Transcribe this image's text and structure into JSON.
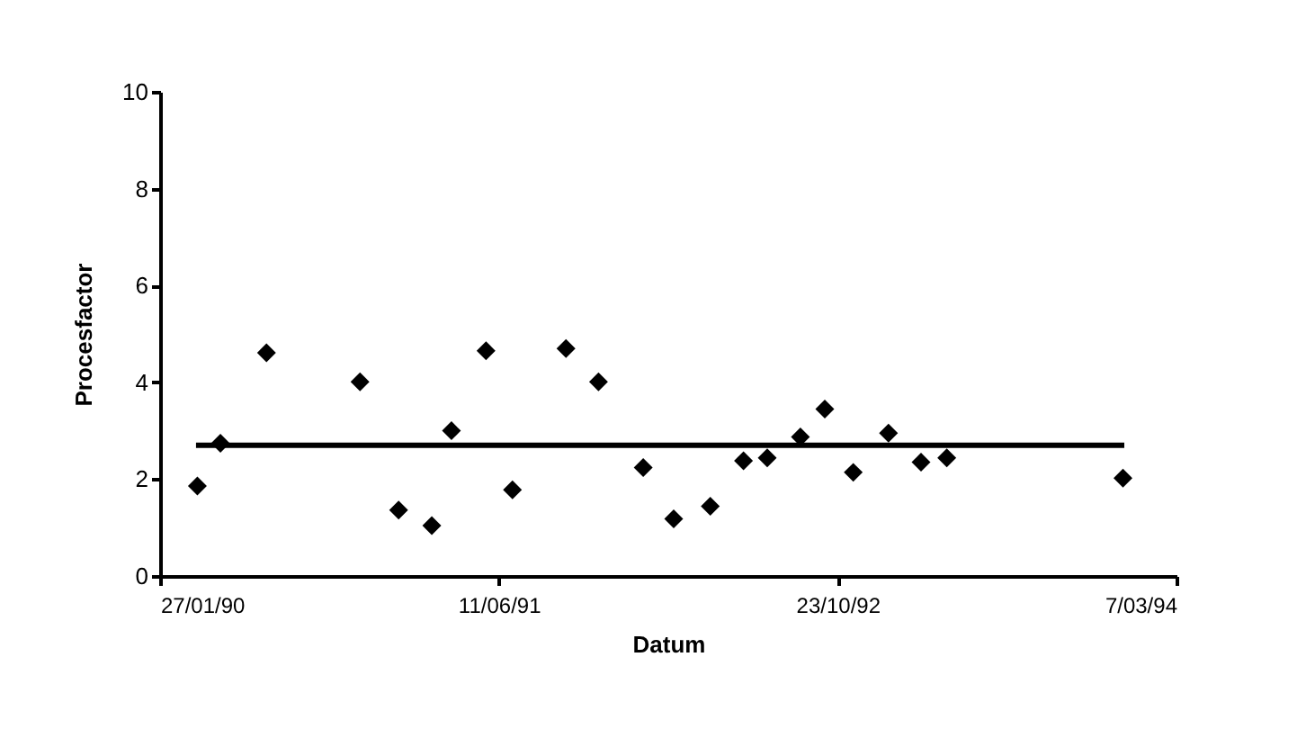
{
  "chart_data": {
    "type": "scatter",
    "xlabel": "Datum",
    "ylabel": "Procesfactor",
    "x": [
      "1990-03-23",
      "1990-04-26",
      "1990-07-03",
      "1990-11-18",
      "1991-01-14",
      "1991-03-04",
      "1991-04-02",
      "1991-05-23",
      "1991-07-01",
      "1991-09-18",
      "1991-11-05",
      "1992-01-10",
      "1992-02-24",
      "1992-04-18",
      "1992-06-06",
      "1992-07-11",
      "1992-08-29",
      "1992-10-04",
      "1992-11-15",
      "1993-01-06",
      "1993-02-23",
      "1993-04-02",
      "1993-12-18"
    ],
    "series": [
      {
        "color": "#000000",
        "values": [
          1.86,
          2.74,
          4.61,
          4.01,
          1.36,
          1.04,
          3.0,
          4.65,
          1.78,
          4.7,
          4.01,
          2.24,
          1.18,
          1.44,
          2.38,
          2.44,
          2.87,
          3.45,
          2.14,
          2.95,
          2.35,
          2.44,
          2.02
        ]
      },
      {
        "type": "line",
        "color": "#000000",
        "marker": "none",
        "line_style": "solid",
        "x": [
          "1990-03-21",
          "1993-12-20"
        ],
        "values": [
          2.7,
          2.7
        ]
      }
    ],
    "marker": "diamond",
    "xlim": [
      "1990-01-27",
      "1994-03-07"
    ],
    "xticks": [
      {
        "value": "1990-01-27",
        "label": "27/01/90"
      },
      {
        "value": "1991-06-11",
        "label": "11/06/91"
      },
      {
        "value": "1992-10-23",
        "label": "23/10/92"
      },
      {
        "value": "1994-03-07",
        "label": "7/03/94"
      }
    ],
    "ylim": [
      0,
      10
    ],
    "yticks": [
      0,
      2,
      4,
      6,
      8,
      10
    ],
    "grid": false
  }
}
